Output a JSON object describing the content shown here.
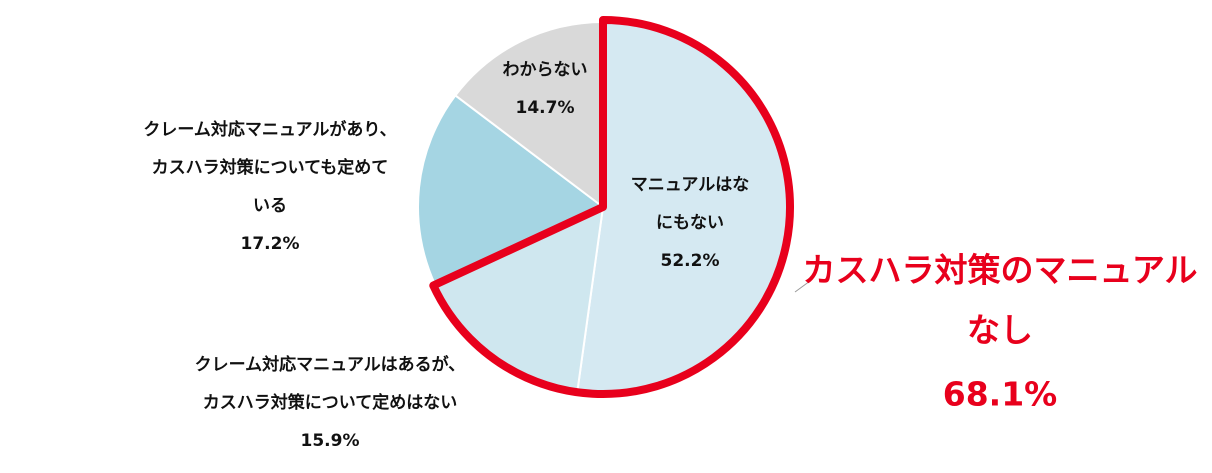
{
  "chart_data": {
    "type": "pie",
    "labels": [
      [
        "マニュアルはな",
        "にもない"
      ],
      [
        "クレーム対応マニュアルはあるが、",
        "カスハラ対策について定めはない"
      ],
      [
        "クレーム対応マニュアルがあり、",
        "カスハラ対策についても定めて",
        "いる"
      ],
      [
        "わからない"
      ]
    ],
    "values": [
      52.2,
      15.9,
      17.2,
      14.7
    ],
    "value_labels": [
      "52.2%",
      "15.9%",
      "17.2%",
      "14.7%"
    ],
    "colors": [
      "#d5e9f2",
      "#cfe7ef",
      "#a5d5e3",
      "#d9d9d9"
    ],
    "annotation": {
      "text": [
        "カスハラ対策のマニュアル",
        "なし"
      ],
      "value": 68.1,
      "value_label": "68.1%",
      "color": "#e8001c"
    }
  }
}
